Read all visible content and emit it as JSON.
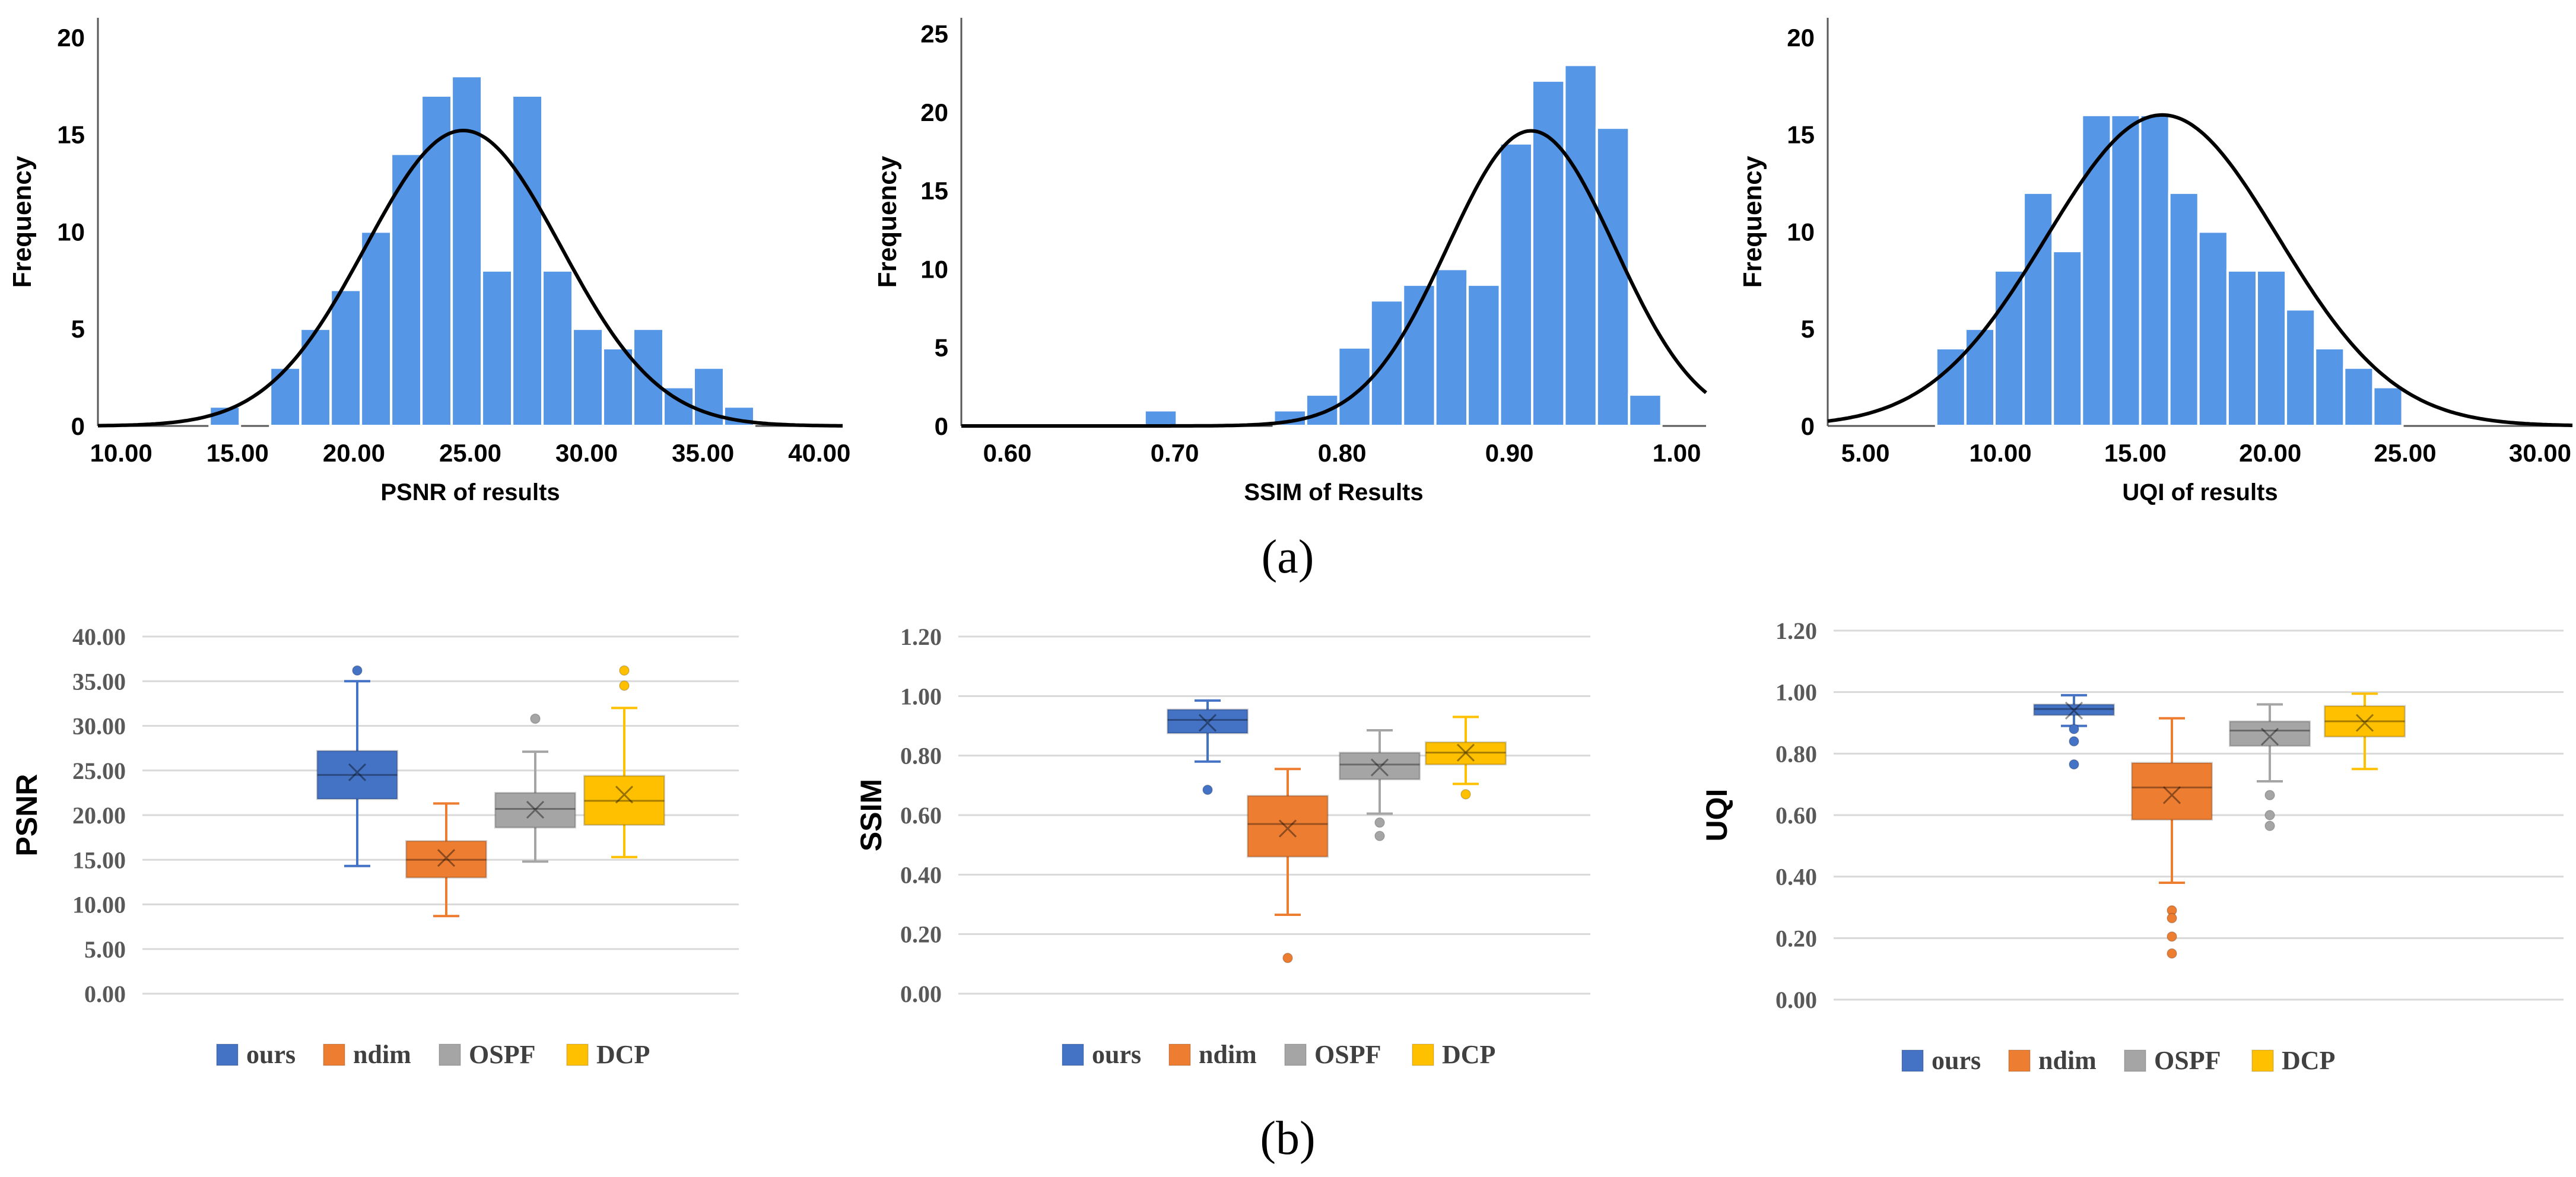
{
  "figure": {
    "label_a": "(a)",
    "label_b": "(b)"
  },
  "colors": {
    "hist_bar": "#5596E6",
    "curve": "#000000",
    "ours": "#4472C4",
    "ndim": "#ED7D31",
    "OSPF": "#A5A5A5",
    "DCP": "#FFC000",
    "grid": "#D9D9D9"
  },
  "chart_data": [
    {
      "type": "histogram",
      "title": "",
      "xlabel": "PSNR of results",
      "ylabel": "Frequency",
      "xlim": [
        9.0,
        41.0
      ],
      "ylim": [
        0,
        21
      ],
      "xticks": [
        "10.00",
        "15.00",
        "20.00",
        "25.00",
        "30.00",
        "35.00",
        "40.00"
      ],
      "xtick_values": [
        10,
        15,
        20,
        25,
        30,
        35,
        40
      ],
      "yticks": [
        0,
        5,
        10,
        15,
        20
      ],
      "bin_width": 1.3,
      "bins": [
        {
          "start": 13.8,
          "count": 1
        },
        {
          "start": 15.1,
          "count": 0
        },
        {
          "start": 16.4,
          "count": 3
        },
        {
          "start": 17.7,
          "count": 5
        },
        {
          "start": 19.0,
          "count": 7
        },
        {
          "start": 20.3,
          "count": 10
        },
        {
          "start": 21.6,
          "count": 14
        },
        {
          "start": 22.9,
          "count": 17
        },
        {
          "start": 24.2,
          "count": 18
        },
        {
          "start": 25.5,
          "count": 8
        },
        {
          "start": 26.8,
          "count": 17
        },
        {
          "start": 28.1,
          "count": 8
        },
        {
          "start": 29.4,
          "count": 5
        },
        {
          "start": 30.7,
          "count": 4
        },
        {
          "start": 32.0,
          "count": 5
        },
        {
          "start": 33.3,
          "count": 2
        },
        {
          "start": 34.6,
          "count": 3
        },
        {
          "start": 35.9,
          "count": 1
        }
      ],
      "normal_curve": {
        "mean": 24.7,
        "sd": 4.2,
        "peak": 15.2
      }
    },
    {
      "type": "histogram",
      "title": "",
      "xlabel": "SSIM of Results",
      "ylabel": "Frequency",
      "xlim": [
        0.5725,
        1.0175
      ],
      "ylim": [
        0,
        26
      ],
      "xticks": [
        "0.60",
        "0.70",
        "0.80",
        "0.90",
        "1.00"
      ],
      "xtick_values": [
        0.6,
        0.7,
        0.8,
        0.9,
        1.0
      ],
      "yticks": [
        0,
        5,
        10,
        15,
        20,
        25
      ],
      "bin_width": 0.0193,
      "bins": [
        {
          "start": 0.682,
          "count": 1
        },
        {
          "start": 0.7013,
          "count": 0
        },
        {
          "start": 0.7206,
          "count": 0
        },
        {
          "start": 0.7399,
          "count": 0
        },
        {
          "start": 0.7592,
          "count": 1
        },
        {
          "start": 0.7785,
          "count": 2
        },
        {
          "start": 0.7978,
          "count": 5
        },
        {
          "start": 0.8171,
          "count": 8
        },
        {
          "start": 0.8364,
          "count": 9
        },
        {
          "start": 0.8557,
          "count": 10
        },
        {
          "start": 0.875,
          "count": 9
        },
        {
          "start": 0.8943,
          "count": 18
        },
        {
          "start": 0.9136,
          "count": 22
        },
        {
          "start": 0.9329,
          "count": 23
        },
        {
          "start": 0.9522,
          "count": 19
        },
        {
          "start": 0.9715,
          "count": 2
        }
      ],
      "normal_curve": {
        "mean": 0.913,
        "sd": 0.05,
        "peak": 18.8
      }
    },
    {
      "type": "histogram",
      "title": "",
      "xlabel": "UQI of results",
      "ylabel": "Frequency",
      "xlim": [
        3.6,
        31.2
      ],
      "ylim": [
        0,
        21
      ],
      "xticks": [
        "5.00",
        "10.00",
        "15.00",
        "20.00",
        "25.00",
        "30.00"
      ],
      "xtick_values": [
        5,
        10,
        15,
        20,
        25,
        30
      ],
      "yticks": [
        0,
        5,
        10,
        15,
        20
      ],
      "bin_width": 1.08,
      "bins": [
        {
          "start": 7.62,
          "count": 4
        },
        {
          "start": 8.7,
          "count": 5
        },
        {
          "start": 9.78,
          "count": 8
        },
        {
          "start": 10.86,
          "count": 12
        },
        {
          "start": 11.94,
          "count": 9
        },
        {
          "start": 13.02,
          "count": 16
        },
        {
          "start": 14.1,
          "count": 16
        },
        {
          "start": 15.18,
          "count": 16
        },
        {
          "start": 16.26,
          "count": 12
        },
        {
          "start": 17.34,
          "count": 10
        },
        {
          "start": 18.42,
          "count": 8
        },
        {
          "start": 19.5,
          "count": 8
        },
        {
          "start": 20.58,
          "count": 6
        },
        {
          "start": 21.66,
          "count": 4
        },
        {
          "start": 22.74,
          "count": 3
        },
        {
          "start": 23.82,
          "count": 2
        }
      ],
      "normal_curve": {
        "mean": 16.0,
        "sd": 4.3,
        "peak": 16.0
      }
    },
    {
      "type": "box",
      "title": "",
      "ylabel": "PSNR",
      "ylim": [
        0,
        40
      ],
      "yticks": [
        "0.00",
        "5.00",
        "10.00",
        "15.00",
        "20.00",
        "25.00",
        "30.00",
        "35.00",
        "40.00"
      ],
      "ytick_values": [
        0,
        5,
        10,
        15,
        20,
        25,
        30,
        35,
        40
      ],
      "legend": [
        "ours",
        "ndim",
        "OSPF",
        "DCP"
      ],
      "series": [
        {
          "name": "ours",
          "min": 14.3,
          "q1": 21.8,
          "median": 24.5,
          "q3": 27.2,
          "max": 35.0,
          "mean": 24.8,
          "outliers": [
            36.2
          ]
        },
        {
          "name": "ndim",
          "min": 8.7,
          "q1": 13.0,
          "median": 15.0,
          "q3": 17.1,
          "max": 21.3,
          "mean": 15.2,
          "outliers": []
        },
        {
          "name": "OSPF",
          "min": 14.8,
          "q1": 18.6,
          "median": 20.7,
          "q3": 22.5,
          "max": 27.1,
          "mean": 20.6,
          "outliers": [
            30.8
          ]
        },
        {
          "name": "DCP",
          "min": 15.3,
          "q1": 18.9,
          "median": 21.6,
          "q3": 24.4,
          "max": 32.0,
          "mean": 22.3,
          "outliers": [
            34.5,
            36.2
          ]
        }
      ]
    },
    {
      "type": "box",
      "title": "",
      "ylabel": "SSIM",
      "ylim": [
        0,
        1.2
      ],
      "yticks": [
        "0.00",
        "0.20",
        "0.40",
        "0.60",
        "0.80",
        "1.00",
        "1.20"
      ],
      "ytick_values": [
        0,
        0.2,
        0.4,
        0.6,
        0.8,
        1.0,
        1.2
      ],
      "legend": [
        "ours",
        "ndim",
        "OSPF",
        "DCP"
      ],
      "series": [
        {
          "name": "ours",
          "min": 0.78,
          "q1": 0.875,
          "median": 0.92,
          "q3": 0.955,
          "max": 0.985,
          "mean": 0.91,
          "outliers": [
            0.685
          ]
        },
        {
          "name": "ndim",
          "min": 0.265,
          "q1": 0.46,
          "median": 0.57,
          "q3": 0.665,
          "max": 0.755,
          "mean": 0.555,
          "outliers": [
            0.12
          ]
        },
        {
          "name": "OSPF",
          "min": 0.605,
          "q1": 0.72,
          "median": 0.77,
          "q3": 0.81,
          "max": 0.885,
          "mean": 0.76,
          "outliers": [
            0.575,
            0.53
          ]
        },
        {
          "name": "DCP",
          "min": 0.705,
          "q1": 0.77,
          "median": 0.81,
          "q3": 0.845,
          "max": 0.93,
          "mean": 0.81,
          "outliers": [
            0.67
          ]
        }
      ]
    },
    {
      "type": "box",
      "title": "",
      "ylabel": "UQI",
      "ylim": [
        0,
        1.2
      ],
      "yticks": [
        "0.00",
        "0.20",
        "0.40",
        "0.60",
        "0.80",
        "1.00",
        "1.20"
      ],
      "ytick_values": [
        0,
        0.2,
        0.4,
        0.6,
        0.8,
        1.0,
        1.2
      ],
      "legend": [
        "ours",
        "ndim",
        "OSPF",
        "DCP"
      ],
      "series": [
        {
          "name": "ours",
          "min": 0.89,
          "q1": 0.925,
          "median": 0.945,
          "q3": 0.96,
          "max": 0.99,
          "mean": 0.94,
          "outliers": [
            0.88,
            0.84,
            0.765
          ]
        },
        {
          "name": "ndim",
          "min": 0.38,
          "q1": 0.585,
          "median": 0.69,
          "q3": 0.77,
          "max": 0.915,
          "mean": 0.665,
          "outliers": [
            0.29,
            0.265,
            0.205,
            0.15
          ]
        },
        {
          "name": "OSPF",
          "min": 0.71,
          "q1": 0.825,
          "median": 0.875,
          "q3": 0.905,
          "max": 0.96,
          "mean": 0.855,
          "outliers": [
            0.665,
            0.6,
            0.565
          ]
        },
        {
          "name": "DCP",
          "min": 0.75,
          "q1": 0.855,
          "median": 0.905,
          "q3": 0.955,
          "max": 0.995,
          "mean": 0.9,
          "outliers": []
        }
      ]
    }
  ]
}
